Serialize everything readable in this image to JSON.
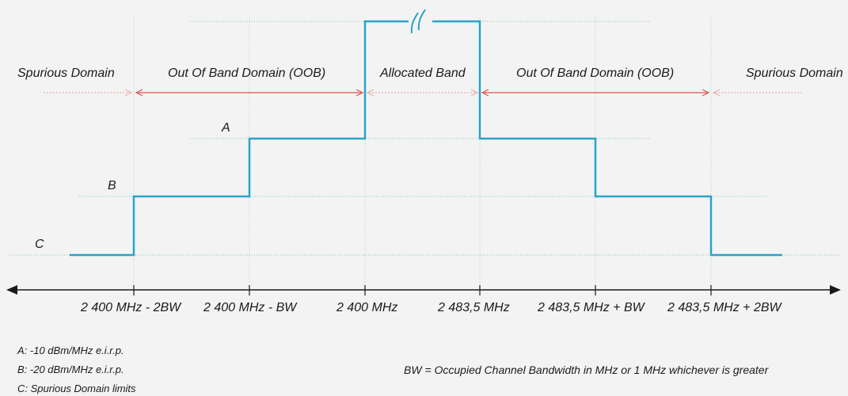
{
  "domains": [
    {
      "label": "Spurious Domain"
    },
    {
      "label": "Out Of Band Domain (OOB)"
    },
    {
      "label": "Allocated Band"
    },
    {
      "label": "Out Of Band Domain (OOB)"
    },
    {
      "label": "Spurious Domain"
    }
  ],
  "levels": {
    "a": "A",
    "b": "B",
    "c": "C"
  },
  "frequencies": [
    "2 400 MHz - 2BW",
    "2 400 MHz - BW",
    "2 400 MHz",
    "2 483,5 MHz",
    "2 483,5 MHz + BW",
    "2 483,5 MHz + 2BW"
  ],
  "legend": {
    "a": "A:  -10 dBm/MHz e.i.r.p.",
    "b": "B:  -20 dBm/MHz e.i.r.p.",
    "c": "C:  Spurious Domain limits",
    "bw_note": "BW = Occupied Channel Bandwidth in MHz or 1 MHz whichever is greater"
  },
  "colors": {
    "mask": "#2aa3c9",
    "oob_arrow": "#d9534f",
    "spurious_arrow": "#e8b0b0",
    "guide": "#7fc7a6",
    "axis": "#1a1a1a"
  }
}
